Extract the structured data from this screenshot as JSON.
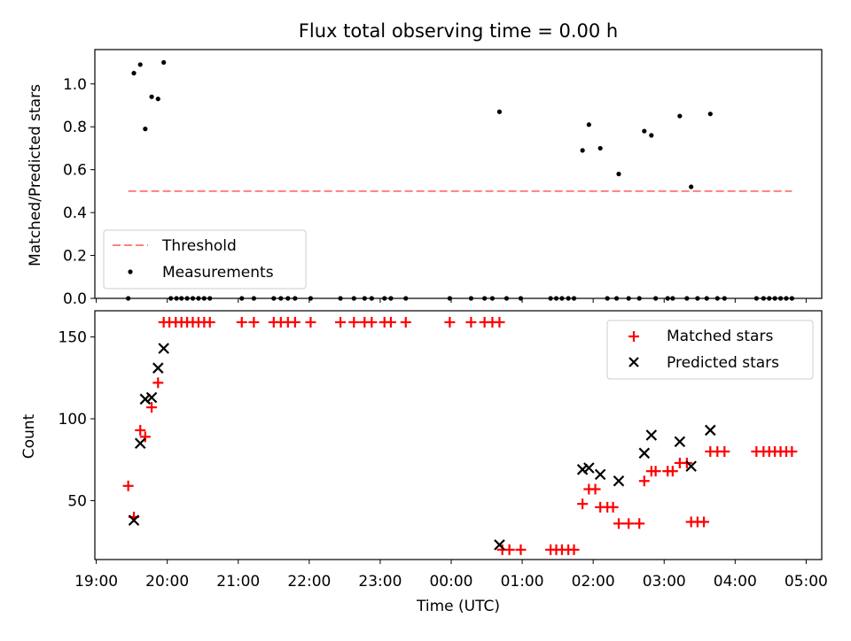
{
  "chart_data": [
    {
      "type": "scatter",
      "title": "Flux total observing time = 0.00 h",
      "xlabel": "",
      "ylabel": "Matched/Predicted stars",
      "xlim": [
        -0.02,
        10.22
      ],
      "ylim": [
        0.0,
        1.16
      ],
      "yticks": [
        0.0,
        0.2,
        0.4,
        0.6,
        0.8,
        1.0
      ],
      "yticklabels": [
        "0.0",
        "0.2",
        "0.4",
        "0.6",
        "0.8",
        "1.0"
      ],
      "legend": {
        "location": "lower-left",
        "entries": [
          "Threshold",
          "Measurements"
        ]
      },
      "threshold": {
        "name": "Threshold",
        "value": 0.5,
        "x_range": [
          0.45,
          9.8
        ],
        "color": "#ff7f7f",
        "style": "dashed"
      },
      "series": [
        {
          "name": "Measurements",
          "marker": "dot",
          "color": "#000000",
          "points": [
            [
              0.45,
              0.0
            ],
            [
              0.53,
              1.05
            ],
            [
              0.62,
              1.09
            ],
            [
              0.69,
              0.79
            ],
            [
              0.78,
              0.94
            ],
            [
              0.87,
              0.93
            ],
            [
              0.95,
              1.1
            ],
            [
              1.05,
              0.0
            ],
            [
              1.13,
              0.0
            ],
            [
              1.2,
              0.0
            ],
            [
              1.28,
              0.0
            ],
            [
              1.36,
              0.0
            ],
            [
              1.44,
              0.0
            ],
            [
              1.52,
              0.0
            ],
            [
              1.6,
              0.0
            ],
            [
              2.05,
              0.0
            ],
            [
              2.22,
              0.0
            ],
            [
              2.5,
              0.0
            ],
            [
              2.6,
              0.0
            ],
            [
              2.7,
              0.0
            ],
            [
              2.8,
              0.0
            ],
            [
              3.02,
              0.0
            ],
            [
              3.44,
              0.0
            ],
            [
              3.63,
              0.0
            ],
            [
              3.78,
              0.0
            ],
            [
              3.88,
              0.0
            ],
            [
              4.06,
              0.0
            ],
            [
              4.15,
              0.0
            ],
            [
              4.36,
              0.0
            ],
            [
              4.98,
              0.0
            ],
            [
              5.28,
              0.0
            ],
            [
              5.47,
              0.0
            ],
            [
              5.58,
              0.0
            ],
            [
              5.68,
              0.87
            ],
            [
              5.78,
              0.0
            ],
            [
              5.98,
              0.0
            ],
            [
              6.4,
              0.0
            ],
            [
              6.48,
              0.0
            ],
            [
              6.56,
              0.0
            ],
            [
              6.65,
              0.0
            ],
            [
              6.73,
              0.0
            ],
            [
              6.85,
              0.69
            ],
            [
              6.94,
              0.81
            ],
            [
              7.1,
              0.7
            ],
            [
              7.2,
              0.0
            ],
            [
              7.33,
              0.0
            ],
            [
              7.36,
              0.58
            ],
            [
              7.5,
              0.0
            ],
            [
              7.65,
              0.0
            ],
            [
              7.72,
              0.78
            ],
            [
              7.82,
              0.76
            ],
            [
              7.88,
              0.0
            ],
            [
              8.05,
              0.0
            ],
            [
              8.12,
              0.0
            ],
            [
              8.22,
              0.85
            ],
            [
              8.32,
              0.0
            ],
            [
              8.38,
              0.52
            ],
            [
              8.47,
              0.0
            ],
            [
              8.6,
              0.0
            ],
            [
              8.65,
              0.86
            ],
            [
              8.75,
              0.0
            ],
            [
              8.85,
              0.0
            ],
            [
              9.3,
              0.0
            ],
            [
              9.4,
              0.0
            ],
            [
              9.48,
              0.0
            ],
            [
              9.56,
              0.0
            ],
            [
              9.64,
              0.0
            ],
            [
              9.72,
              0.0
            ],
            [
              9.8,
              0.0
            ]
          ]
        }
      ]
    },
    {
      "type": "scatter",
      "title": "",
      "xlabel": "Time (UTC)",
      "ylabel": "Count",
      "xlim": [
        -0.02,
        10.22
      ],
      "ylim": [
        14,
        166
      ],
      "yticks": [
        50,
        100,
        150
      ],
      "yticklabels": [
        "50",
        "100",
        "150"
      ],
      "xticks": [
        0,
        1,
        2,
        3,
        4,
        5,
        6,
        7,
        8,
        9,
        10
      ],
      "xticklabels": [
        "19:00",
        "20:00",
        "21:00",
        "22:00",
        "23:00",
        "00:00",
        "01:00",
        "02:00",
        "03:00",
        "04:00",
        "05:00"
      ],
      "legend": {
        "location": "top-right",
        "entries": [
          "Matched stars",
          "Predicted stars"
        ]
      },
      "series": [
        {
          "name": "Matched stars",
          "marker": "plus",
          "color": "#ff0000",
          "points": [
            [
              0.45,
              59
            ],
            [
              0.53,
              40
            ],
            [
              0.62,
              93
            ],
            [
              0.69,
              89
            ],
            [
              0.78,
              107
            ],
            [
              0.87,
              122
            ],
            [
              0.95,
              159
            ],
            [
              1.03,
              159
            ],
            [
              1.12,
              159
            ],
            [
              1.2,
              159
            ],
            [
              1.28,
              159
            ],
            [
              1.36,
              159
            ],
            [
              1.44,
              159
            ],
            [
              1.52,
              159
            ],
            [
              1.6,
              159
            ],
            [
              2.05,
              159
            ],
            [
              2.22,
              159
            ],
            [
              2.5,
              159
            ],
            [
              2.6,
              159
            ],
            [
              2.7,
              159
            ],
            [
              2.8,
              159
            ],
            [
              3.02,
              159
            ],
            [
              3.44,
              159
            ],
            [
              3.63,
              159
            ],
            [
              3.78,
              159
            ],
            [
              3.88,
              159
            ],
            [
              4.06,
              159
            ],
            [
              4.15,
              159
            ],
            [
              4.36,
              159
            ],
            [
              4.98,
              159
            ],
            [
              5.28,
              159
            ],
            [
              5.47,
              159
            ],
            [
              5.58,
              159
            ],
            [
              5.68,
              159
            ],
            [
              5.72,
              20
            ],
            [
              5.82,
              20
            ],
            [
              5.98,
              20
            ],
            [
              6.4,
              20
            ],
            [
              6.48,
              20
            ],
            [
              6.56,
              20
            ],
            [
              6.65,
              20
            ],
            [
              6.73,
              20
            ],
            [
              6.85,
              48
            ],
            [
              6.94,
              57
            ],
            [
              7.03,
              57
            ],
            [
              7.1,
              46
            ],
            [
              7.2,
              46
            ],
            [
              7.28,
              46
            ],
            [
              7.36,
              36
            ],
            [
              7.5,
              36
            ],
            [
              7.65,
              36
            ],
            [
              7.72,
              62
            ],
            [
              7.82,
              68
            ],
            [
              7.88,
              68
            ],
            [
              8.05,
              68
            ],
            [
              8.12,
              68
            ],
            [
              8.22,
              73
            ],
            [
              8.32,
              73
            ],
            [
              8.38,
              37
            ],
            [
              8.47,
              37
            ],
            [
              8.56,
              37
            ],
            [
              8.65,
              80
            ],
            [
              8.75,
              80
            ],
            [
              8.85,
              80
            ],
            [
              9.3,
              80
            ],
            [
              9.4,
              80
            ],
            [
              9.48,
              80
            ],
            [
              9.56,
              80
            ],
            [
              9.64,
              80
            ],
            [
              9.72,
              80
            ],
            [
              9.8,
              80
            ]
          ]
        },
        {
          "name": "Predicted stars",
          "marker": "x",
          "color": "#000000",
          "points": [
            [
              0.53,
              38
            ],
            [
              0.62,
              85
            ],
            [
              0.69,
              112
            ],
            [
              0.78,
              113
            ],
            [
              0.87,
              131
            ],
            [
              0.95,
              143
            ],
            [
              5.68,
              23
            ],
            [
              6.85,
              69
            ],
            [
              6.94,
              70
            ],
            [
              7.1,
              66
            ],
            [
              7.36,
              62
            ],
            [
              7.72,
              79
            ],
            [
              7.82,
              90
            ],
            [
              8.22,
              86
            ],
            [
              8.38,
              71
            ],
            [
              8.65,
              93
            ]
          ]
        }
      ]
    }
  ]
}
